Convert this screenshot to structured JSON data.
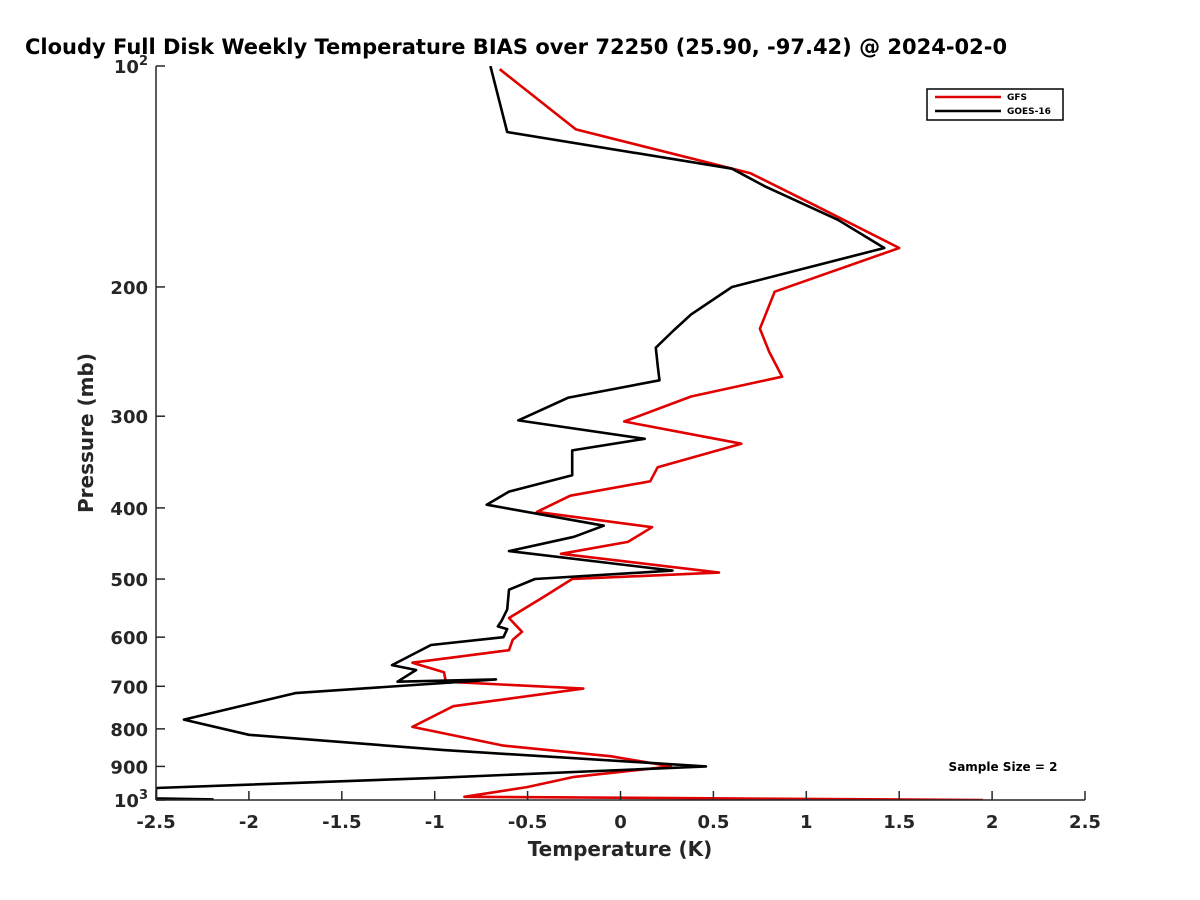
{
  "chart_data": {
    "type": "line",
    "title": "Cloudy Full Disk Weekly Temperature BIAS over 72250 (25.90, -97.42) @ 2024-02-0",
    "xlabel": "Temperature (K)",
    "ylabel": "Pressure (mb)",
    "xlim": [
      -2.5,
      2.5
    ],
    "ylim": [
      100,
      1000
    ],
    "y_scale": "log",
    "y_reversed": true,
    "grid": false,
    "legend_position": "top-right",
    "x_ticks": [
      {
        "value": -2.5,
        "label": "-2.5"
      },
      {
        "value": -2,
        "label": "-2"
      },
      {
        "value": -1.5,
        "label": "-1.5"
      },
      {
        "value": -1,
        "label": "-1"
      },
      {
        "value": -0.5,
        "label": "-0.5"
      },
      {
        "value": 0,
        "label": "0"
      },
      {
        "value": 0.5,
        "label": "0.5"
      },
      {
        "value": 1,
        "label": "1"
      },
      {
        "value": 1.5,
        "label": "1.5"
      },
      {
        "value": 2,
        "label": "2"
      },
      {
        "value": 2.5,
        "label": "2.5"
      }
    ],
    "y_ticks": [
      {
        "value": 100,
        "base": "10",
        "exp": "2"
      },
      {
        "value": 200,
        "label": "200"
      },
      {
        "value": 300,
        "label": "300"
      },
      {
        "value": 400,
        "label": "400"
      },
      {
        "value": 500,
        "label": "500"
      },
      {
        "value": 600,
        "label": "600"
      },
      {
        "value": 700,
        "label": "700"
      },
      {
        "value": 800,
        "label": "800"
      },
      {
        "value": 900,
        "label": "900"
      },
      {
        "value": 1000,
        "base": "10",
        "exp": "3"
      }
    ],
    "annotation": "Sample Size = 2",
    "series": [
      {
        "name": "GFS",
        "color": "#e00000",
        "x": [
          -0.65,
          -0.24,
          0.7,
          1.05,
          1.5,
          0.83,
          0.75,
          0.8,
          0.87,
          0.38,
          0.02,
          0.65,
          0.2,
          0.16,
          -0.27,
          -0.45,
          0.17,
          0.04,
          -0.32,
          0.53,
          -0.26,
          -0.42,
          -0.6,
          -0.53,
          -0.58,
          -0.6,
          -1.12,
          -0.95,
          -0.94,
          -0.2,
          -0.9,
          -1.12,
          -0.63,
          -0.05,
          0.27,
          -0.25,
          -0.5,
          -0.84,
          1.95
        ],
        "y": [
          101,
          122,
          140,
          155,
          177,
          203,
          228,
          245,
          265,
          282,
          305,
          327,
          352,
          368,
          385,
          405,
          425,
          445,
          462,
          490,
          500,
          530,
          565,
          590,
          605,
          625,
          650,
          670,
          690,
          705,
          745,
          795,
          843,
          872,
          900,
          930,
          960,
          990,
          1000
        ]
      },
      {
        "name": "GOES-16",
        "color": "#000000",
        "x": [
          -0.7,
          -0.61,
          0.6,
          0.78,
          1.17,
          1.42,
          0.6,
          0.38,
          0.28,
          0.19,
          0.2,
          0.21,
          -0.28,
          -0.55,
          0.13,
          -0.26,
          -0.26,
          -0.6,
          -0.72,
          -0.09,
          -0.25,
          -0.6,
          0.28,
          -0.46,
          -0.6,
          -0.61,
          -0.64,
          -0.66,
          -0.61,
          -0.63,
          -1.02,
          -1.23,
          -1.1,
          -1.2,
          -0.67,
          -1.75,
          -2.35,
          -2.0,
          -0.95,
          0.46,
          -1.0,
          -2.5,
          -2.5,
          -2.19
        ],
        "y": [
          100,
          123,
          138,
          146,
          162,
          177,
          200,
          218,
          230,
          242,
          256,
          268,
          283,
          304,
          322,
          334,
          361,
          380,
          396,
          423,
          438,
          458,
          487,
          500,
          517,
          550,
          570,
          580,
          585,
          600,
          615,
          655,
          665,
          690,
          685,
          715,
          777,
          815,
          855,
          900,
          933,
          963,
          995,
          998
        ]
      }
    ]
  }
}
